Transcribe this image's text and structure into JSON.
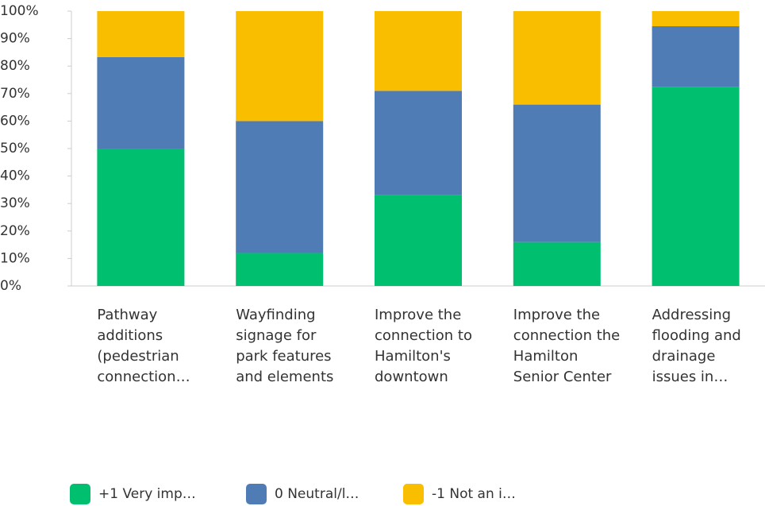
{
  "chart_data": {
    "type": "stacked_bar",
    "categories": [
      "Pathway additions (pedestrian connection…",
      "Wayfinding signage for park features and elements",
      "Improve the connection to Hamilton's downtown",
      "Improve the connection the Hamilton Senior Center",
      "Addressing flooding and drainage issues in…"
    ],
    "series": [
      {
        "name": "+1 Very imp…",
        "color": "#00bf6f",
        "values": [
          50,
          12,
          33,
          16,
          72.5
        ]
      },
      {
        "name": "0 Neutral/l…",
        "color": "#507cb6",
        "values": [
          33.3,
          48,
          38,
          50,
          22
        ]
      },
      {
        "name": "-1 Not an i…",
        "color": "#f9be00",
        "values": [
          16.7,
          40,
          29,
          34,
          5.5
        ]
      }
    ],
    "ylim": [
      0,
      100
    ],
    "yticks": [
      {
        "value": 0,
        "label": "0%"
      },
      {
        "value": 10,
        "label": "10%"
      },
      {
        "value": 20,
        "label": "20%"
      },
      {
        "value": 30,
        "label": "30%"
      },
      {
        "value": 40,
        "label": "40%"
      },
      {
        "value": 50,
        "label": "50%"
      },
      {
        "value": 60,
        "label": "60%"
      },
      {
        "value": 70,
        "label": "70%"
      },
      {
        "value": 80,
        "label": "80%"
      },
      {
        "value": 90,
        "label": "90%"
      },
      {
        "value": 100,
        "label": "100%"
      }
    ]
  }
}
